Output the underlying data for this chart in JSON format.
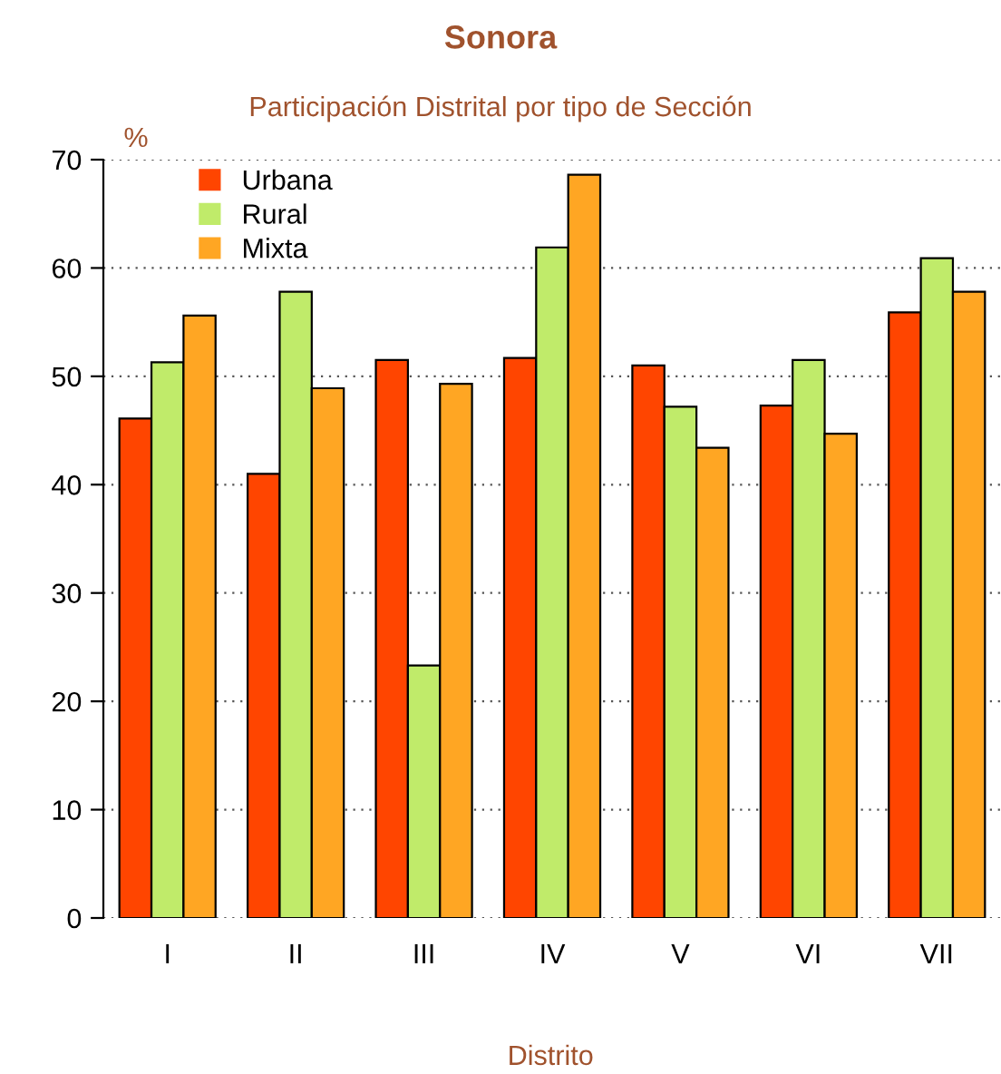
{
  "chart_data": {
    "type": "bar",
    "title": "Sonora",
    "subtitle": "Participación Distrital por tipo de Sección",
    "xlabel": "Distrito",
    "ylabel": "%",
    "categories": [
      "I",
      "II",
      "III",
      "IV",
      "V",
      "VI",
      "VII"
    ],
    "series": [
      {
        "name": "Urbana",
        "color": "#ff4500",
        "values": [
          46.1,
          41.0,
          51.5,
          51.7,
          51.0,
          47.3,
          55.9
        ]
      },
      {
        "name": "Rural",
        "color": "#c0eb6a",
        "values": [
          51.3,
          57.8,
          23.3,
          61.9,
          47.2,
          51.5,
          60.9
        ]
      },
      {
        "name": "Mixta",
        "color": "#ffa623",
        "values": [
          55.6,
          48.9,
          49.3,
          68.6,
          43.4,
          44.7,
          57.8
        ]
      }
    ],
    "ylim": [
      0,
      70
    ],
    "yticks": [
      0,
      10,
      20,
      30,
      40,
      50,
      60,
      70
    ],
    "grid": "y",
    "legend": "top left"
  }
}
